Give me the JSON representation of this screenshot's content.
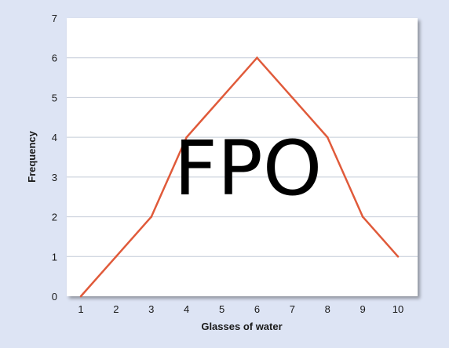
{
  "chart_data": {
    "type": "line",
    "xlabel": "Glasses of water",
    "ylabel": "Frequency",
    "x": [
      1,
      2,
      3,
      4,
      5,
      6,
      7,
      8,
      9,
      10
    ],
    "series": [
      {
        "values": [
          0,
          1,
          2,
          4,
          5,
          6,
          5,
          4,
          2,
          1
        ]
      }
    ],
    "xlim": [
      1,
      10
    ],
    "ylim": [
      0,
      7
    ],
    "yticks": [
      0,
      1,
      2,
      3,
      4,
      5,
      6,
      7
    ],
    "grid": "horizontal",
    "line_color": "#e05a3a",
    "overlay_text": "FPO"
  }
}
